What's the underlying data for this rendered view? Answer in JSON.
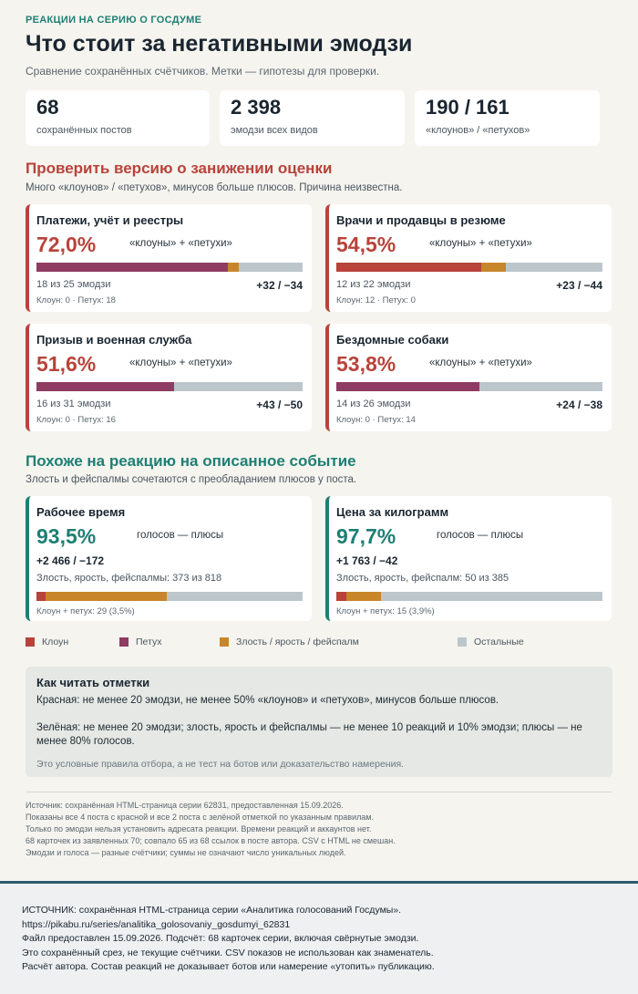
{
  "header": {
    "eyebrow": "РЕАКЦИИ НА СЕРИЮ О ГОСДУМЕ",
    "title": "Что стоит за негативными эмодзи",
    "subtitle": "Сравнение сохранённых счётчиков. Метки — гипотезы для проверки."
  },
  "kpis": [
    {
      "value": "68",
      "label": "сохранённых постов"
    },
    {
      "value": "2 398",
      "label": "эмодзи всех видов"
    },
    {
      "value": "190 / 161",
      "label": "«клоунов» / «петухов»"
    }
  ],
  "red_section": {
    "title": "Проверить версию о занижении оценки",
    "subtitle": "Много «клоунов» / «петухов», минусов больше плюсов. Причина неизвестна.",
    "cards": [
      {
        "title": "Платежи, учёт и реестры",
        "percent": "72,0%",
        "percent_label": "«клоуны» + «петухи»",
        "count": "18 из 25 эмодзи",
        "delta": "+32 / −34",
        "small": "Клоун: 0  ·  Петух: 18",
        "bar": {
          "clown": 0,
          "rooster": 18,
          "anger": 1,
          "other": 6
        }
      },
      {
        "title": "Врачи и продавцы в резюме",
        "percent": "54,5%",
        "percent_label": "«клоуны» + «петухи»",
        "count": "12 из 22 эмодзи",
        "delta": "+23 / −44",
        "small": "Клоун: 12  ·  Петух: 0",
        "bar": {
          "clown": 12,
          "rooster": 0,
          "anger": 2,
          "other": 8
        }
      },
      {
        "title": "Призыв и военная служба",
        "percent": "51,6%",
        "percent_label": "«клоуны» + «петухи»",
        "count": "16 из 31 эмодзи",
        "delta": "+43 / −50",
        "small": "Клоун: 0  ·  Петух: 16",
        "bar": {
          "clown": 0,
          "rooster": 16,
          "anger": 0,
          "other": 15
        }
      },
      {
        "title": "Бездомные собаки",
        "percent": "53,8%",
        "percent_label": "«клоуны» + «петухи»",
        "count": "14 из 26 эмодзи",
        "delta": "+24 / −38",
        "small": "Клоун: 0  ·  Петух: 14",
        "bar": {
          "clown": 0,
          "rooster": 14,
          "anger": 0,
          "other": 12
        }
      }
    ]
  },
  "green_section": {
    "title": "Похоже на реакцию на описанное событие",
    "subtitle": "Злость и фейспалмы сочетаются с преобладанием плюсов у поста.",
    "cards": [
      {
        "title": "Рабочее время",
        "percent": "93,5%",
        "percent_label": "голосов — плюсы",
        "delta": "+2 466 / −172",
        "line": "Злость, ярость, фейспалмы: 373 из 818",
        "small": "Клоун + петух: 29 (3,5%)",
        "bar": {
          "clown": 29,
          "rooster": 0,
          "anger": 373,
          "other": 416
        }
      },
      {
        "title": "Цена за килограмм",
        "percent": "97,7%",
        "percent_label": "голосов — плюсы",
        "delta": "+1 763 / −42",
        "line": "Злость, ярость, фейспалм: 50 из 385",
        "small": "Клоун + петух: 15 (3,9%)",
        "bar": {
          "clown": 15,
          "rooster": 0,
          "anger": 50,
          "other": 320
        }
      }
    ]
  },
  "legend": [
    {
      "label": "Клоун",
      "color": "#b8433a"
    },
    {
      "label": "Петух",
      "color": "#8e3c62"
    },
    {
      "label": "Злость / ярость / фейспалм",
      "color": "#c8862a"
    },
    {
      "label": "Остальные",
      "color": "#bcc6cb"
    }
  ],
  "note": {
    "title": "Как читать отметки",
    "red": "Красная: не менее 20 эмодзи, не менее 50% «клоунов» и «петухов», минусов больше плюсов.",
    "green": "Зелёная: не менее 20 эмодзи; злость, ярость и фейспалмы — не менее 10 реакций и 10% эмодзи; плюсы — не менее 80% голосов.",
    "disclaimer": "Это условные правила отбора, а не тест на ботов или доказательство намерения."
  },
  "source_lines": [
    "Источник: сохранённая HTML-страница серии 62831, предоставленная 15.09.2026.",
    "Показаны все 4 поста с красной и все 2 поста с зелёной отметкой по указанным правилам.",
    "Только по эмодзи нельзя установить адресата реакции. Времени реакций и аккаунтов нет.",
    "68 карточек из заявленных 70; совпало 65 из 68 ссылок в посте автора. CSV с HTML не смешан.",
    "Эмодзи и голоса — разные счётчики; суммы не означают число уникальных людей."
  ],
  "footer_lines": [
    "ИСТОЧНИК: сохранённая HTML-страница серии «Аналитика голосований Госдумы».",
    "https://pikabu.ru/series/analitika_golosovaniy_gosdumyi_62831",
    "Файл предоставлен 15.09.2026. Подсчёт: 68 карточек серии, включая свёрнутые эмодзи.",
    "Это сохранённый срез, не текущие счётчики. CSV показов не использован как знаменатель.",
    "Расчёт автора. Состав реакций не доказывает ботов или намерение «утопить» публикацию."
  ]
}
